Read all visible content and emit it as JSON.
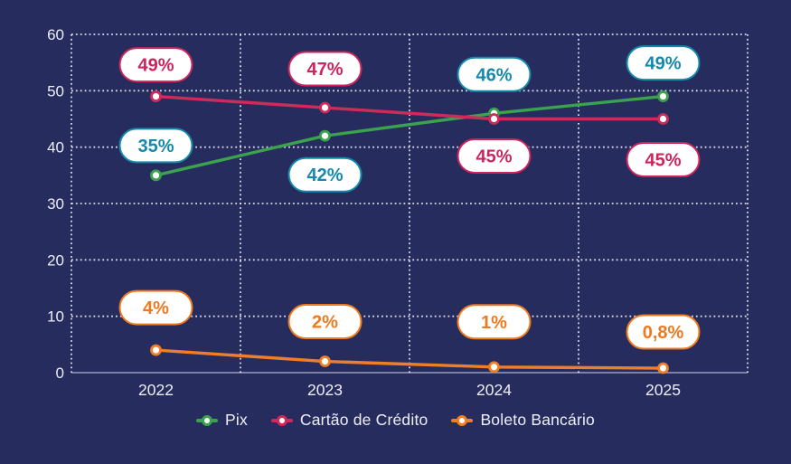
{
  "page": {
    "background_color": "#272c5e"
  },
  "chart_data": {
    "type": "line",
    "categories": [
      "2022",
      "2023",
      "2024",
      "2025"
    ],
    "y_ticks": [
      0,
      10,
      20,
      30,
      40,
      50,
      60
    ],
    "ylim": [
      0,
      60
    ],
    "grid": "dotted-white",
    "legend_position": "bottom",
    "axis_text_color": "#eceef8",
    "series": [
      {
        "name": "Pix",
        "color": "#3ba24e",
        "label_color": "#1489a9",
        "values": [
          35,
          42,
          46,
          49
        ],
        "labels": [
          "35%",
          "42%",
          "46%",
          "49%"
        ],
        "label_dy": [
          -33,
          43,
          -43,
          -37
        ]
      },
      {
        "name": "Cartão de Crédito",
        "color": "#cf2b5a",
        "label_color": "#cb255c",
        "values": [
          49,
          47,
          45,
          45
        ],
        "labels": [
          "49%",
          "47%",
          "45%",
          "45%"
        ],
        "label_dy": [
          -35,
          -43,
          41,
          45
        ]
      },
      {
        "name": "Boleto Bancário",
        "color": "#ef7e27",
        "label_color": "#ee7a20",
        "values": [
          4,
          2,
          1,
          0.8
        ],
        "labels": [
          "4%",
          "2%",
          "1%",
          "0,8%"
        ],
        "label_dy": [
          -47,
          -44,
          -50,
          -40
        ]
      }
    ]
  }
}
